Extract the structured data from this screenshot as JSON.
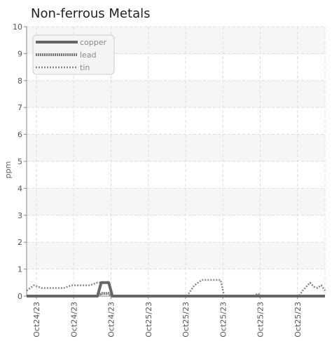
{
  "chart_data": {
    "type": "line",
    "title": "Non-ferrous Metals",
    "xlabel": "",
    "ylabel": "ppm",
    "ylim": [
      0,
      10
    ],
    "yticks": [
      "0",
      "1",
      "2",
      "3",
      "4",
      "5",
      "6",
      "7",
      "8",
      "9",
      "10"
    ],
    "grid": true,
    "legend_position": "top-left",
    "x": [
      0,
      0.25,
      0.5,
      0.75,
      1,
      1.25,
      1.5,
      1.75,
      2,
      2.25,
      2.5,
      2.75,
      3,
      3.25,
      3.5,
      3.75,
      4,
      4.25,
      4.5,
      4.75,
      5,
      5.25,
      5.5,
      5.75,
      6,
      6.25,
      6.5,
      6.75,
      7,
      7.25,
      7.5,
      7.75,
      8,
      8.25,
      8.5,
      8.75,
      9,
      9.25,
      9.5,
      9.75,
      10,
      10.25,
      10.5,
      10.75,
      11,
      11.25,
      11.5,
      11.75,
      12,
      12.25,
      12.5,
      12.75,
      13,
      13.25,
      13.5,
      13.75,
      14,
      14.25,
      14.5,
      14.75,
      15,
      15.25,
      15.5,
      15.75,
      16,
      16.25,
      16.5,
      16.75,
      17,
      17.25,
      17.5,
      17.75,
      18,
      18.25,
      18.5,
      18.75,
      19,
      19.25,
      19.5,
      19.75,
      20
    ],
    "x_tick_labels": [
      "Oct24/23",
      "Oct24/23",
      "Oct24/23",
      "Oct25/23",
      "Oct25/23",
      "Oct25/23",
      "Oct25/23",
      "Oct25/23"
    ],
    "series": [
      {
        "name": "copper",
        "color": "#666666",
        "style": "solid",
        "values": [
          0,
          0,
          0,
          0,
          0,
          0,
          0,
          0,
          0,
          0,
          0,
          0,
          0,
          0,
          0,
          0,
          0,
          0,
          0,
          0,
          0.5,
          0.5,
          0.5,
          0,
          0,
          0,
          0,
          0,
          0,
          0,
          0,
          0,
          0,
          0,
          0,
          0,
          0,
          0,
          0,
          0,
          0,
          0,
          0,
          0,
          0,
          0,
          0,
          0,
          0,
          0,
          0,
          0,
          0,
          0,
          0,
          0,
          0,
          0,
          0,
          0,
          0,
          0,
          0,
          0,
          0,
          0,
          0,
          0,
          0,
          0,
          0,
          0,
          0,
          0,
          0,
          0,
          0,
          0,
          0,
          0,
          0
        ]
      },
      {
        "name": "lead",
        "color": "#777777",
        "style": "dotted",
        "values": [
          0,
          0,
          0,
          0,
          0,
          0,
          0,
          0,
          0,
          0,
          0,
          0,
          0,
          0,
          0,
          0,
          0,
          0,
          0,
          0,
          0.1,
          0.1,
          0.1,
          0,
          0,
          0,
          0,
          0,
          0,
          0,
          0,
          0,
          0,
          0,
          0,
          0,
          0,
          0,
          0,
          0,
          0,
          0,
          0,
          0,
          0,
          0,
          0,
          0,
          0,
          0,
          0,
          0,
          0,
          0,
          0,
          0,
          0,
          0,
          0,
          0,
          0,
          0,
          0,
          0,
          0,
          0,
          0,
          0,
          0,
          0,
          0,
          0,
          0,
          0,
          0,
          0,
          0,
          0,
          0,
          0,
          0
        ]
      },
      {
        "name": "tin",
        "color": "#888888",
        "style": "dashed",
        "values": [
          0.2,
          0.3,
          0.4,
          0.35,
          0.3,
          0.3,
          0.3,
          0.3,
          0.3,
          0.3,
          0.3,
          0.35,
          0.4,
          0.4,
          0.4,
          0.4,
          0.4,
          0.4,
          0.45,
          0.5,
          0.5,
          0.5,
          0.5,
          0,
          0,
          0,
          0,
          0,
          0,
          0,
          0,
          0,
          0,
          0,
          0,
          0,
          0,
          0,
          0,
          0,
          0,
          0,
          0,
          0,
          0.2,
          0.4,
          0.5,
          0.6,
          0.6,
          0.6,
          0.6,
          0.6,
          0.6,
          0,
          0,
          0,
          0,
          0,
          0,
          0,
          0,
          0,
          0.1,
          0,
          0,
          0,
          0,
          0,
          0,
          0,
          0,
          0,
          0,
          0,
          0.2,
          0.35,
          0.5,
          0.35,
          0.3,
          0.4,
          0.2
        ]
      }
    ]
  }
}
